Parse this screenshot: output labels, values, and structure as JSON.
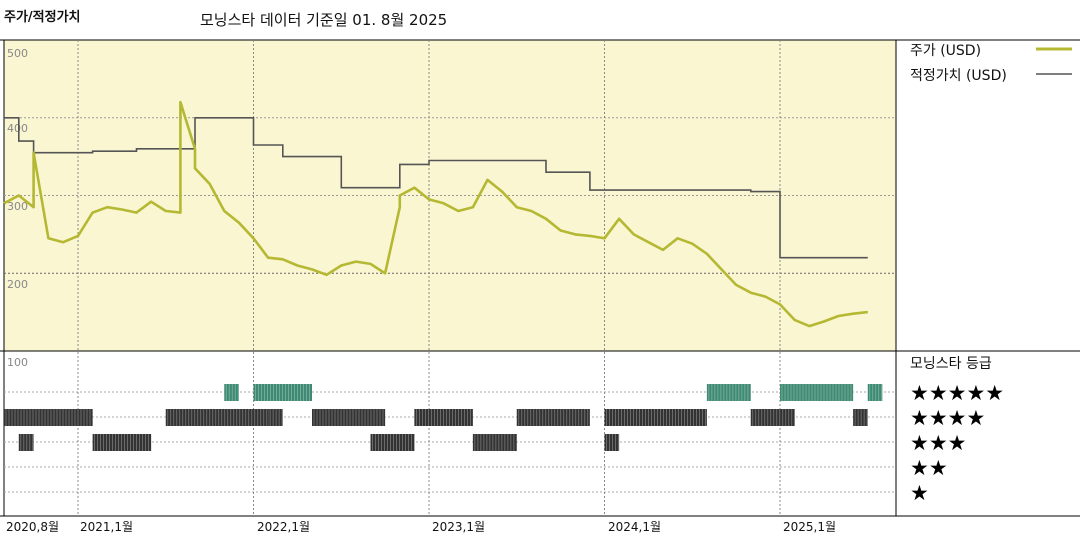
{
  "header": {
    "title": "주가/적정가치",
    "subtitle": "모닝스타 데이터 기준일 01. 8월 2025"
  },
  "legend": {
    "price_label": "주가 (USD)",
    "fair_label": "적정가치 (USD)"
  },
  "rating": {
    "title": "모닝스타 등급",
    "star_rows": [
      "★★★★★",
      "★★★★",
      "★★★",
      "★★",
      "★"
    ]
  },
  "colors": {
    "price": "#b5b832",
    "fair": "#555555",
    "panel": "#faf6d2",
    "five_star": "#3f8a73",
    "bars": "#333333"
  },
  "chart_data": {
    "type": "line",
    "y_ticks": [
      "500",
      "400",
      "300",
      "200",
      "100"
    ],
    "ylim": [
      100,
      500
    ],
    "x_labels": [
      "2020,8월",
      "2021,1월",
      "2022,1월",
      "2023,1월",
      "2024,1월",
      "2025,1월"
    ],
    "x_range": [
      "2020-08",
      "2025-08"
    ],
    "series": [
      {
        "name": "주가 (USD)",
        "x": [
          "2020-08",
          "2020-09",
          "2020-10",
          "2020-10",
          "2020-11",
          "2020-12",
          "2021-01",
          "2021-02",
          "2021-03",
          "2021-04",
          "2021-05",
          "2021-06",
          "2021-07",
          "2021-08",
          "2021-08",
          "2021-09",
          "2021-09",
          "2021-10",
          "2021-11",
          "2021-12",
          "2022-01",
          "2022-02",
          "2022-03",
          "2022-04",
          "2022-05",
          "2022-06",
          "2022-07",
          "2022-08",
          "2022-09",
          "2022-10",
          "2022-11",
          "2022-11",
          "2022-12",
          "2023-01",
          "2023-02",
          "2023-03",
          "2023-04",
          "2023-05",
          "2023-06",
          "2023-07",
          "2023-08",
          "2023-09",
          "2023-10",
          "2023-11",
          "2023-12",
          "2024-01",
          "2024-02",
          "2024-03",
          "2024-04",
          "2024-05",
          "2024-06",
          "2024-07",
          "2024-08",
          "2024-09",
          "2024-10",
          "2024-11",
          "2024-12",
          "2025-01",
          "2025-02",
          "2025-03",
          "2025-04",
          "2025-05",
          "2025-06",
          "2025-07"
        ],
        "values": [
          290,
          300,
          285,
          355,
          245,
          240,
          248,
          278,
          285,
          282,
          278,
          292,
          280,
          278,
          420,
          360,
          335,
          315,
          280,
          265,
          245,
          220,
          218,
          210,
          205,
          198,
          210,
          215,
          212,
          200,
          285,
          300,
          310,
          295,
          290,
          280,
          285,
          320,
          305,
          285,
          280,
          270,
          255,
          250,
          248,
          245,
          270,
          250,
          240,
          230,
          245,
          238,
          225,
          205,
          185,
          175,
          170,
          160,
          140,
          132,
          138,
          145,
          148,
          150
        ]
      },
      {
        "name": "적정가치 (USD)",
        "x": [
          "2020-08",
          "2020-09",
          "2020-09",
          "2020-10",
          "2020-10",
          "2021-02",
          "2021-02",
          "2021-05",
          "2021-05",
          "2021-09",
          "2021-09",
          "2022-01",
          "2022-01",
          "2022-03",
          "2022-03",
          "2022-07",
          "2022-07",
          "2022-11",
          "2022-11",
          "2023-01",
          "2023-01",
          "2023-09",
          "2023-09",
          "2023-12",
          "2023-12",
          "2024-11",
          "2024-11",
          "2025-01",
          "2025-01",
          "2025-07"
        ],
        "values": [
          400,
          400,
          370,
          370,
          355,
          355,
          357,
          357,
          360,
          360,
          400,
          400,
          365,
          365,
          350,
          350,
          310,
          310,
          340,
          340,
          345,
          345,
          330,
          330,
          307,
          307,
          305,
          305,
          220,
          220
        ]
      }
    ]
  },
  "rating_history": {
    "five_star": [
      [
        "2021-11",
        "2021-12"
      ],
      [
        "2022-01",
        "2022-05"
      ],
      [
        "2024-08",
        "2024-11"
      ],
      [
        "2025-01",
        "2025-06"
      ],
      [
        "2025-07",
        "2025-08"
      ]
    ],
    "four_star": [
      [
        "2020-08",
        "2021-02"
      ],
      [
        "2021-07",
        "2022-02"
      ],
      [
        "2022-02",
        "2022-03"
      ],
      [
        "2022-05",
        "2022-10"
      ],
      [
        "2022-12",
        "2023-04"
      ],
      [
        "2023-07",
        "2023-12"
      ],
      [
        "2024-01",
        "2024-08"
      ],
      [
        "2024-11",
        "2025-02"
      ],
      [
        "2025-06",
        "2025-07"
      ]
    ],
    "three_star": [
      [
        "2020-09",
        "2020-10"
      ],
      [
        "2021-02",
        "2021-06"
      ],
      [
        "2022-09",
        "2022-12"
      ],
      [
        "2023-04",
        "2023-07"
      ],
      [
        "2024-01",
        "2024-02"
      ]
    ]
  }
}
